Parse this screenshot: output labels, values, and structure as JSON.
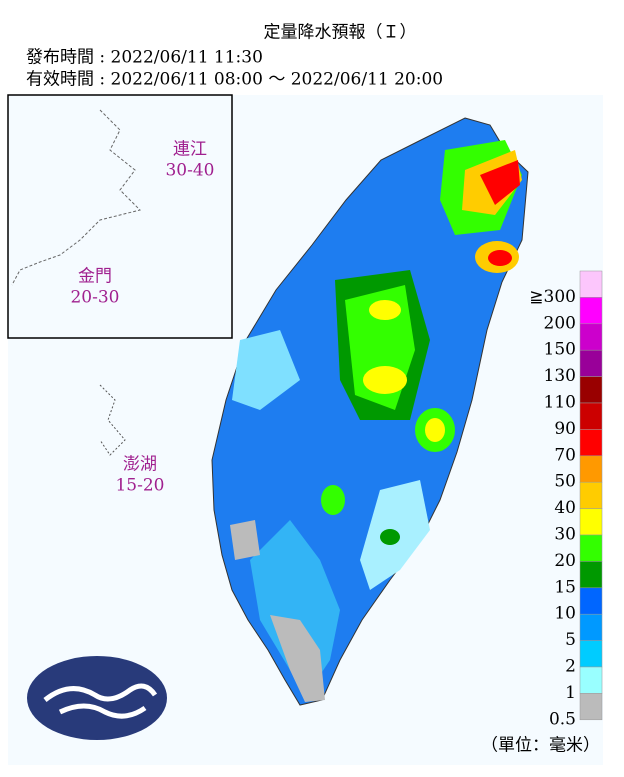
{
  "header": {
    "title": "定量降水預報（Ｉ）",
    "issued": "發布時間 : 2022/06/11 11:30",
    "valid": "有效時間 : 2022/06/11 08:00 ～ 2022/06/11 20:00"
  },
  "islands": [
    {
      "name": "連江",
      "range": "30-40"
    },
    {
      "name": "金門",
      "range": "20-30"
    },
    {
      "name": "澎湖",
      "range": "15-20"
    }
  ],
  "legend": {
    "items": [
      {
        "label": "≧300",
        "color": "#fcc6fc"
      },
      {
        "label": "200",
        "color": "#ff00ff"
      },
      {
        "label": "150",
        "color": "#cc00cc"
      },
      {
        "label": "130",
        "color": "#990099"
      },
      {
        "label": "110",
        "color": "#990000"
      },
      {
        "label": "90",
        "color": "#cc0000"
      },
      {
        "label": "70",
        "color": "#ff0000"
      },
      {
        "label": "50",
        "color": "#ff9900"
      },
      {
        "label": "40",
        "color": "#ffcc00"
      },
      {
        "label": "30",
        "color": "#ffff00"
      },
      {
        "label": "20",
        "color": "#33ff00"
      },
      {
        "label": "15",
        "color": "#009900"
      },
      {
        "label": "10",
        "color": "#0066ff"
      },
      {
        "label": "5",
        "color": "#0099ff"
      },
      {
        "label": "2",
        "color": "#00ccff"
      },
      {
        "label": "1",
        "color": "#99ffff"
      },
      {
        "label": "0.5",
        "color": "#bbbbbb"
      }
    ],
    "unit": "（單位：毫米）"
  }
}
